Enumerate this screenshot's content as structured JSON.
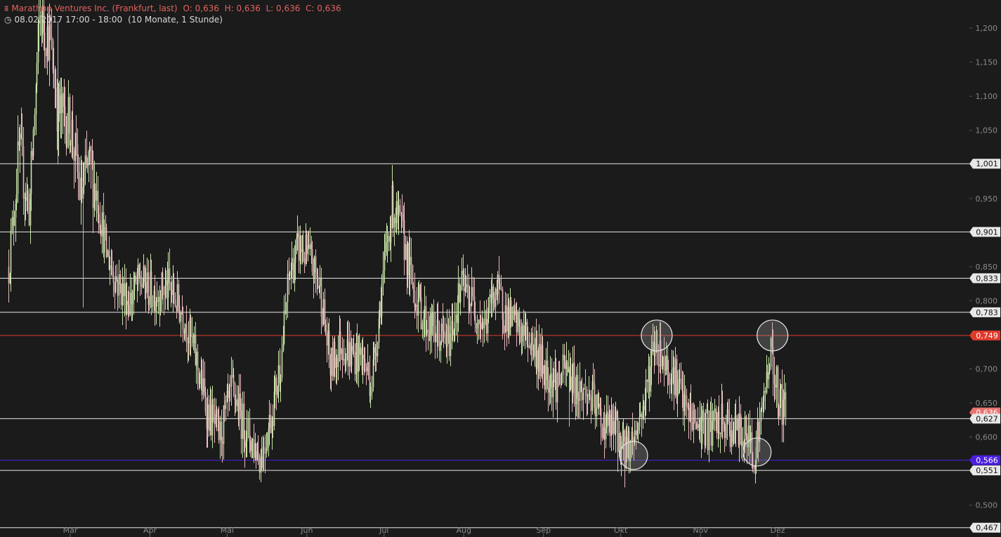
{
  "header": {
    "symbol_icon": "candlestick-icon",
    "title": "Marathon Ventures Inc. (Frankfurt, last)",
    "ohlc": "O: 0,636  H: 0,636  L: 0,636  C: 0,636",
    "time_icon": "clock-icon",
    "datetime": "08.02.2017 17:00 - 18:00",
    "range": "(10 Monate, 1 Stunde)"
  },
  "chart_data": {
    "type": "candlestick",
    "title": "Marathon Ventures Inc. (Frankfurt, last)",
    "x_tick_labels": [
      "Mär",
      "Apr",
      "Mai",
      "Jun",
      "Jul",
      "Aug",
      "Sep",
      "Okt",
      "Nov",
      "Dez"
    ],
    "y_tick_labels": [
      "1,200",
      "1,150",
      "1,100",
      "1,050",
      "0,950",
      "0,850",
      "0,800",
      "0,700",
      "0,650",
      "0,600",
      "0,500"
    ],
    "ylim": [
      0.46,
      1.24
    ],
    "grid": false,
    "colors": {
      "background": "#1b1b1b",
      "up": "#c8e6a8",
      "down": "#e8b8bc",
      "level": "#e8e8e8",
      "current": "#e03a2c",
      "support": "#4b1fe0"
    },
    "horizontal_levels": [
      {
        "value": 1.001,
        "label": "1,001",
        "kind": "level"
      },
      {
        "value": 0.901,
        "label": "0,901",
        "kind": "level"
      },
      {
        "value": 0.833,
        "label": "0,833",
        "kind": "level"
      },
      {
        "value": 0.783,
        "label": "0,783",
        "kind": "level"
      },
      {
        "value": 0.749,
        "label": "0,749",
        "kind": "current"
      },
      {
        "value": 0.627,
        "label": "0,627",
        "kind": "level"
      },
      {
        "value": 0.566,
        "label": "0,566",
        "kind": "support"
      },
      {
        "value": 0.551,
        "label": "0,551",
        "kind": "level"
      },
      {
        "value": 0.467,
        "label": "0,467",
        "kind": "level"
      }
    ],
    "last_price_label": "0,636",
    "price_path": [
      [
        "2017-02-05",
        0.85
      ],
      [
        "2017-02-09",
        1.02
      ],
      [
        "2017-02-13",
        0.93
      ],
      [
        "2017-02-17",
        1.22
      ],
      [
        "2017-02-21",
        1.18
      ],
      [
        "2017-02-24",
        1.08
      ],
      [
        "2017-03-01",
        1.06
      ],
      [
        "2017-03-05",
        0.95
      ],
      [
        "2017-03-08",
        1.0
      ],
      [
        "2017-03-11",
        0.96
      ],
      [
        "2017-03-15",
        0.87
      ],
      [
        "2017-03-20",
        0.82
      ],
      [
        "2017-03-24",
        0.8
      ],
      [
        "2017-03-28",
        0.83
      ],
      [
        "2017-04-02",
        0.81
      ],
      [
        "2017-04-08",
        0.82
      ],
      [
        "2017-04-14",
        0.78
      ],
      [
        "2017-04-19",
        0.71
      ],
      [
        "2017-04-23",
        0.64
      ],
      [
        "2017-04-28",
        0.6
      ],
      [
        "2017-05-03",
        0.67
      ],
      [
        "2017-05-07",
        0.62
      ],
      [
        "2017-05-11",
        0.59
      ],
      [
        "2017-05-14",
        0.57
      ],
      [
        "2017-05-18",
        0.63
      ],
      [
        "2017-05-22",
        0.72
      ],
      [
        "2017-05-25",
        0.84
      ],
      [
        "2017-05-29",
        0.88
      ],
      [
        "2017-06-02",
        0.86
      ],
      [
        "2017-06-06",
        0.82
      ],
      [
        "2017-06-10",
        0.7
      ],
      [
        "2017-06-14",
        0.74
      ],
      [
        "2017-06-18",
        0.72
      ],
      [
        "2017-06-22",
        0.72
      ],
      [
        "2017-06-26",
        0.68
      ],
      [
        "2017-06-30",
        0.82
      ],
      [
        "2017-07-04",
        0.94
      ],
      [
        "2017-07-08",
        0.9
      ],
      [
        "2017-07-12",
        0.82
      ],
      [
        "2017-07-17",
        0.77
      ],
      [
        "2017-07-21",
        0.75
      ],
      [
        "2017-07-26",
        0.74
      ],
      [
        "2017-07-31",
        0.82
      ],
      [
        "2017-08-04",
        0.8
      ],
      [
        "2017-08-09",
        0.76
      ],
      [
        "2017-08-13",
        0.82
      ],
      [
        "2017-08-17",
        0.78
      ],
      [
        "2017-08-22",
        0.76
      ],
      [
        "2017-08-27",
        0.74
      ],
      [
        "2017-09-01",
        0.7
      ],
      [
        "2017-09-06",
        0.68
      ],
      [
        "2017-09-10",
        0.7
      ],
      [
        "2017-09-14",
        0.67
      ],
      [
        "2017-09-19",
        0.66
      ],
      [
        "2017-09-24",
        0.62
      ],
      [
        "2017-09-29",
        0.61
      ],
      [
        "2017-10-02",
        0.58
      ],
      [
        "2017-10-06",
        0.6
      ],
      [
        "2017-10-10",
        0.65
      ],
      [
        "2017-10-14",
        0.74
      ],
      [
        "2017-10-18",
        0.71
      ],
      [
        "2017-10-22",
        0.69
      ],
      [
        "2017-10-26",
        0.64
      ],
      [
        "2017-10-30",
        0.62
      ],
      [
        "2017-11-04",
        0.61
      ],
      [
        "2017-11-09",
        0.62
      ],
      [
        "2017-11-14",
        0.61
      ],
      [
        "2017-11-19",
        0.6
      ],
      [
        "2017-11-22",
        0.58
      ],
      [
        "2017-11-25",
        0.64
      ],
      [
        "2017-11-28",
        0.73
      ],
      [
        "2017-12-01",
        0.66
      ],
      [
        "2017-12-04",
        0.636
      ]
    ],
    "annotation_circles": [
      {
        "label": "top-1",
        "date": "2017-10-15",
        "price": 0.749
      },
      {
        "label": "top-2",
        "date": "2017-11-29",
        "price": 0.749
      },
      {
        "label": "bottom-1",
        "date": "2017-10-06",
        "price": 0.573
      },
      {
        "label": "bottom-2",
        "date": "2017-11-23",
        "price": 0.578
      }
    ]
  }
}
